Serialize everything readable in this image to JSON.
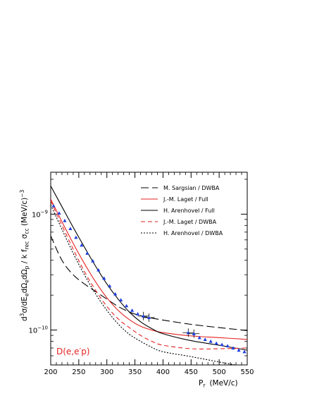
{
  "chart_data": {
    "type": "line",
    "xlabel": "P",
    "xlabel_sub": "r",
    "xlabel_units": "(MeV/c)",
    "ylabel": "d³σ/dE",
    "ylabel_parts": {
      "pre": "d",
      "pre_sup": "3",
      "a": "σ/dE",
      "a_sub": "e",
      "b": "dΩ",
      "b_sub": "e",
      "c": "dΩ",
      "c_sub": "p",
      "d": " / k f",
      "d_sub": "rec",
      "e": " σ",
      "e_sub": "cc",
      "units": "   (MeV/c)",
      "units_sup": "−3"
    },
    "xlim": [
      200,
      550
    ],
    "ylim": [
      5e-11,
      2.3e-09
    ],
    "yscale": "log",
    "x_ticks": [
      200,
      250,
      300,
      350,
      400,
      450,
      500,
      550
    ],
    "x_tick_labels": [
      "200",
      "250",
      "300",
      "350",
      "400",
      "450",
      "500",
      "550"
    ],
    "y_major_ticks": [
      1e-10,
      1e-09
    ],
    "y_tick_labels": [
      {
        "base": "10",
        "exp": "−10",
        "value": 1e-10
      },
      {
        "base": "10",
        "exp": "−9",
        "value": 1e-09
      }
    ],
    "annotation": "D(e,e′p)",
    "legend_position": "top-right",
    "series": [
      {
        "name": "M. Sargsian / DWBA",
        "color": "#000000",
        "dash": "long-dash",
        "x": [
          200,
          220,
          240,
          260,
          280,
          300,
          320,
          340,
          360,
          380,
          400,
          450,
          500,
          550
        ],
        "y": [
          6.5e-10,
          4e-10,
          3e-10,
          2.5e-10,
          2.15e-10,
          1.85e-10,
          1.6e-10,
          1.43e-10,
          1.33e-10,
          1.27e-10,
          1.22e-10,
          1.12e-10,
          1.05e-10,
          9.9e-11
        ]
      },
      {
        "name": "J.-M. Laget / Full",
        "color": "#e52222",
        "dash": "solid",
        "x": [
          200,
          220,
          240,
          260,
          280,
          300,
          320,
          340,
          360,
          380,
          400,
          450,
          500,
          550
        ],
        "y": [
          1.35e-09,
          8.6e-10,
          5.6e-10,
          3.75e-10,
          2.6e-10,
          1.9e-10,
          1.48e-10,
          1.23e-10,
          1.08e-10,
          1e-10,
          9.5e-11,
          8.9e-11,
          8.6e-11,
          8.3e-11
        ]
      },
      {
        "name": "H. Arenhovel / Full",
        "color": "#000000",
        "dash": "solid",
        "x": [
          200,
          220,
          240,
          260,
          280,
          300,
          320,
          340,
          360,
          380,
          400,
          450,
          500,
          550
        ],
        "y": [
          1.75e-09,
          1.16e-09,
          7.7e-10,
          5.2e-10,
          3.55e-10,
          2.5e-10,
          1.85e-10,
          1.43e-10,
          1.18e-10,
          1.03e-10,
          9.3e-11,
          8.1e-11,
          7.4e-11,
          6.7e-11
        ]
      },
      {
        "name": "J.-M. Laget / DWBA",
        "color": "#e52222",
        "dash": "dash",
        "x": [
          200,
          220,
          240,
          260,
          280,
          300,
          320,
          340,
          360,
          380,
          400,
          450,
          500,
          550
        ],
        "y": [
          1.3e-09,
          8e-10,
          5e-10,
          3.2e-10,
          2.2e-10,
          1.6e-10,
          1.25e-10,
          1.05e-10,
          9e-11,
          8e-11,
          7.4e-11,
          6.9e-11,
          6.9e-11,
          7e-11
        ]
      },
      {
        "name": "H. Arenhovel / DWBA",
        "color": "#000000",
        "dash": "dot",
        "x": [
          200,
          220,
          240,
          260,
          280,
          300,
          320,
          340,
          360,
          380,
          400,
          450,
          500,
          550
        ],
        "y": [
          1.2e-09,
          7.4e-10,
          4.6e-10,
          3e-10,
          2.05e-10,
          1.48e-10,
          1.13e-10,
          9.2e-11,
          8e-11,
          7.1e-11,
          6.5e-11,
          5.9e-11,
          5.3e-11,
          4.8e-11
        ]
      }
    ],
    "data_points": {
      "color": "#1f3fe0",
      "marker": "triangle",
      "x": [
        205,
        215,
        225,
        235,
        245,
        255,
        265,
        275,
        285,
        295,
        305,
        315,
        325,
        335,
        345,
        355,
        365,
        375,
        445,
        455,
        465,
        475,
        485,
        495,
        505,
        515,
        525,
        535,
        545
      ],
      "y": [
        1.18e-09,
        1.02e-09,
        8.8e-10,
        7.5e-10,
        6.3e-10,
        5.4e-10,
        4.6e-10,
        3.95e-10,
        3.3e-10,
        2.8e-10,
        2.4e-10,
        2.05e-10,
        1.82e-10,
        1.62e-10,
        1.48e-10,
        1.38e-10,
        1.32e-10,
        1.28e-10,
        9.5e-11,
        9.3e-11,
        8.6e-11,
        8.3e-11,
        8e-11,
        7.7e-11,
        7.5e-11,
        7.3e-11,
        7e-11,
        6.7e-11,
        6.5e-11
      ],
      "xerr": [
        0,
        0,
        0,
        0,
        0,
        0,
        0,
        0,
        0,
        0,
        0,
        0,
        0,
        0,
        0,
        0,
        10,
        10,
        10,
        10,
        0,
        0,
        0,
        0,
        0,
        0,
        0,
        0,
        0
      ]
    }
  }
}
